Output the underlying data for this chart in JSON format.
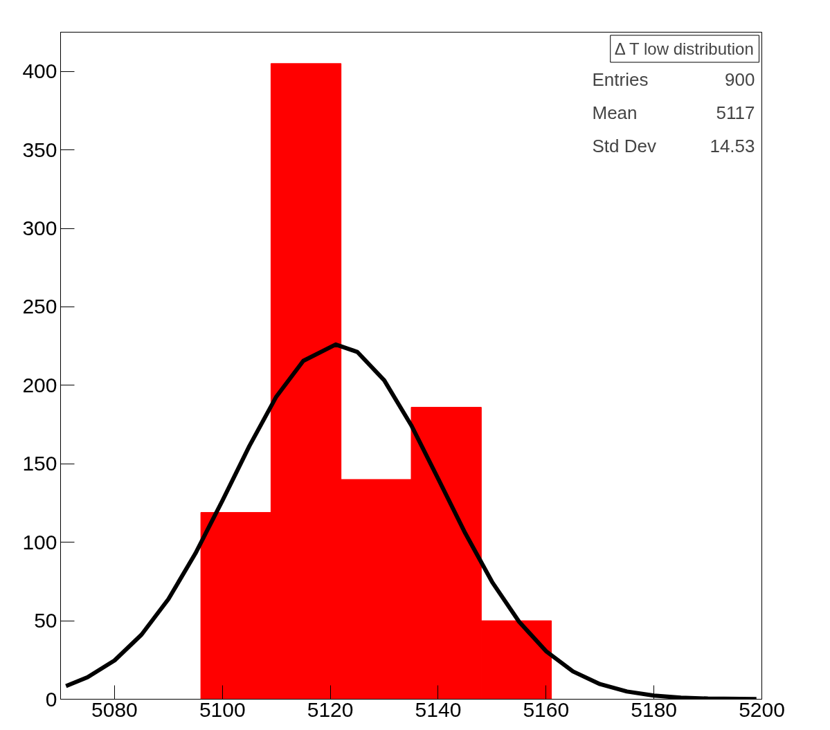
{
  "chart_data": {
    "type": "histogram",
    "title": "Δ T low distribution",
    "bins": [
      5070,
      5083,
      5096,
      5109,
      5122,
      5135,
      5148,
      5161,
      5174,
      5187,
      5200
    ],
    "values": [
      0,
      0,
      119,
      405,
      140,
      186,
      50,
      0,
      0,
      0
    ],
    "color": "#ff0000",
    "series": [
      {
        "type": "line",
        "color": "#000000",
        "x": [
          5071,
          5075,
          5080,
          5085,
          5090,
          5095,
          5100,
          5105,
          5110,
          5115,
          5121,
          5125,
          5130,
          5135,
          5140,
          5145,
          5150,
          5155,
          5160,
          5165,
          5170,
          5175,
          5180,
          5185,
          5190,
          5199
        ],
        "values": [
          8.4,
          14,
          24.7,
          41.1,
          63.8,
          92.9,
          126.5,
          161.3,
          192.8,
          215.6,
          226,
          221.3,
          203.2,
          174.6,
          140.5,
          105.9,
          74.7,
          49.4,
          30.6,
          17.7,
          9.6,
          4.9,
          2.3,
          1,
          0.4,
          0.1
        ]
      }
    ],
    "xlim": [
      5070,
      5200
    ],
    "ylim": [
      0,
      425
    ],
    "xticks": [
      5080,
      5100,
      5120,
      5140,
      5160,
      5180,
      5200
    ],
    "yticks": [
      0,
      50,
      100,
      150,
      200,
      250,
      300,
      350,
      400
    ],
    "grid": false,
    "annotations": [
      "Entries",
      "900",
      "Mean",
      "5117",
      "Std Dev",
      "14.53"
    ]
  }
}
